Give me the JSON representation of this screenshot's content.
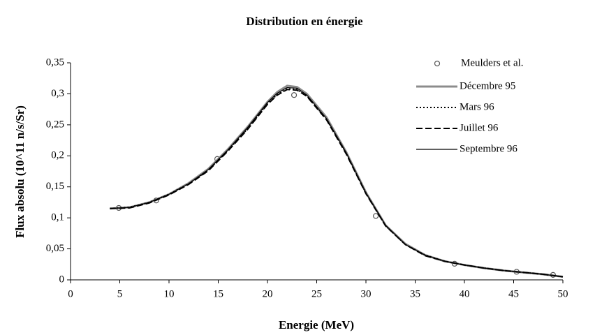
{
  "chart_data": {
    "type": "line",
    "title": "Distribution en énergie",
    "x_label": "Energie (MeV)",
    "y_label": "Flux absolu (10^11 n/s/Sr)",
    "xlim": [
      0,
      50
    ],
    "ylim": [
      0,
      0.35
    ],
    "xticks": [
      0,
      5,
      10,
      15,
      20,
      25,
      30,
      35,
      40,
      45,
      50
    ],
    "yticks": [
      0,
      {
        "value": 0.05,
        "label": "0,05"
      },
      {
        "value": 0.1,
        "label": "0,1"
      },
      {
        "value": 0.15,
        "label": "0,15"
      },
      {
        "value": 0.2,
        "label": "0,2"
      },
      {
        "value": 0.25,
        "label": "0,25"
      },
      {
        "value": 0.3,
        "label": "0,3"
      },
      {
        "value": 0.35,
        "label": "0,35"
      }
    ],
    "legend": "top-right",
    "x": [
      4,
      6,
      8,
      10,
      12,
      14,
      16,
      18,
      20,
      21,
      22,
      23,
      24,
      26,
      28,
      30,
      32,
      34,
      36,
      38,
      40,
      42,
      44,
      46,
      48,
      50
    ],
    "series": [
      {
        "name": "Meulders et al.",
        "color": "#555555",
        "style": "markers",
        "x": [
          4.9,
          8.7,
          14.9,
          22.7,
          31,
          39,
          45.3,
          49
        ],
        "values": [
          0.116,
          0.128,
          0.195,
          0.298,
          0.103,
          0.026,
          0.013,
          0.008
        ]
      },
      {
        "name": "Décembre 95",
        "color": "#8c8c8c",
        "style": "solid",
        "values": [
          0.115,
          0.117,
          0.125,
          0.138,
          0.156,
          0.179,
          0.211,
          0.247,
          0.287,
          0.303,
          0.313,
          0.311,
          0.3,
          0.262,
          0.206,
          0.141,
          0.088,
          0.058,
          0.04,
          0.03,
          0.024,
          0.019,
          0.015,
          0.012,
          0.009,
          0.005
        ]
      },
      {
        "name": "Mars 96",
        "color": "#000000",
        "style": "dotted",
        "values": [
          0.115,
          0.117,
          0.125,
          0.138,
          0.155,
          0.177,
          0.209,
          0.244,
          0.284,
          0.299,
          0.308,
          0.307,
          0.297,
          0.259,
          0.204,
          0.14,
          0.087,
          0.057,
          0.04,
          0.03,
          0.024,
          0.019,
          0.015,
          0.012,
          0.009,
          0.005
        ]
      },
      {
        "name": "Juillet 96",
        "color": "#000000",
        "style": "dashed",
        "values": [
          0.115,
          0.116,
          0.124,
          0.137,
          0.154,
          0.176,
          0.208,
          0.243,
          0.283,
          0.298,
          0.307,
          0.306,
          0.296,
          0.258,
          0.203,
          0.139,
          0.087,
          0.057,
          0.039,
          0.03,
          0.024,
          0.019,
          0.015,
          0.012,
          0.009,
          0.005
        ]
      },
      {
        "name": "Septembre 96",
        "color": "#000000",
        "style": "solid",
        "values": [
          0.115,
          0.117,
          0.125,
          0.138,
          0.155,
          0.178,
          0.21,
          0.246,
          0.286,
          0.301,
          0.31,
          0.309,
          0.298,
          0.26,
          0.205,
          0.14,
          0.088,
          0.057,
          0.04,
          0.03,
          0.024,
          0.019,
          0.015,
          0.012,
          0.009,
          0.005
        ]
      }
    ]
  }
}
